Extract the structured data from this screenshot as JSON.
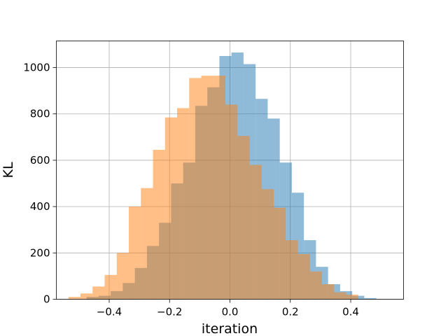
{
  "chart_data": {
    "type": "histogram",
    "title": "",
    "xlabel": "iteration",
    "ylabel": "KL",
    "xlim": [
      -0.575,
      0.575
    ],
    "ylim": [
      0,
      1115
    ],
    "grid": true,
    "legend": "none",
    "x_ticks": [
      -0.4,
      -0.2,
      0.0,
      0.2,
      0.4
    ],
    "x_tick_labels": [
      "−0.4",
      "−0.2",
      "0.0",
      "0.2",
      "0.4"
    ],
    "y_ticks": [
      0,
      200,
      400,
      600,
      800,
      1000
    ],
    "y_tick_labels": [
      "0",
      "200",
      "400",
      "600",
      "800",
      "1000"
    ],
    "series": [
      {
        "color": "#1f77b4",
        "alpha": 0.5,
        "bin_edges": [
          -0.475,
          -0.435,
          -0.395,
          -0.355,
          -0.315,
          -0.275,
          -0.235,
          -0.195,
          -0.155,
          -0.115,
          -0.075,
          -0.035,
          0.005,
          0.045,
          0.085,
          0.125,
          0.165,
          0.205,
          0.245,
          0.285,
          0.325,
          0.365,
          0.405,
          0.445,
          0.485
        ],
        "counts": [
          10,
          15,
          35,
          70,
          135,
          230,
          330,
          500,
          590,
          835,
          915,
          1050,
          1065,
          1015,
          865,
          780,
          590,
          460,
          255,
          140,
          65,
          35,
          15,
          5
        ]
      },
      {
        "color": "#ff7f0e",
        "alpha": 0.5,
        "bin_edges": [
          -0.535,
          -0.495,
          -0.455,
          -0.415,
          -0.375,
          -0.335,
          -0.295,
          -0.255,
          -0.215,
          -0.175,
          -0.135,
          -0.095,
          -0.055,
          -0.015,
          0.025,
          0.065,
          0.105,
          0.145,
          0.185,
          0.225,
          0.265,
          0.305,
          0.345,
          0.385,
          0.425
        ],
        "counts": [
          10,
          25,
          55,
          105,
          200,
          400,
          480,
          645,
          785,
          825,
          955,
          965,
          965,
          840,
          705,
          580,
          475,
          395,
          255,
          195,
          120,
          65,
          30,
          20
        ]
      }
    ]
  }
}
